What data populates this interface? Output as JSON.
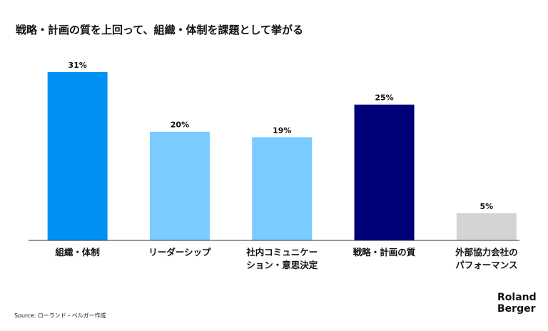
{
  "chart_data": {
    "type": "bar",
    "title": "戦略・計画の質を上回って、組織・体制を課題として挙がる",
    "categories": [
      "組織・体制",
      "リーダーシップ",
      "社内コミュニケー\nション・意思決定",
      "戦略・計画の質",
      "外部協力会社の\nパフォーマンス"
    ],
    "values": [
      31,
      20,
      19,
      25,
      5
    ],
    "value_labels": [
      "31%",
      "20%",
      "19%",
      "25%",
      "5%"
    ],
    "colors": [
      "#0091f5",
      "#7acbff",
      "#7acbff",
      "#000078",
      "#d4d4d4"
    ],
    "source": "Source: ローランド・ベルガー作成",
    "logo": "Roland\nBerger"
  }
}
